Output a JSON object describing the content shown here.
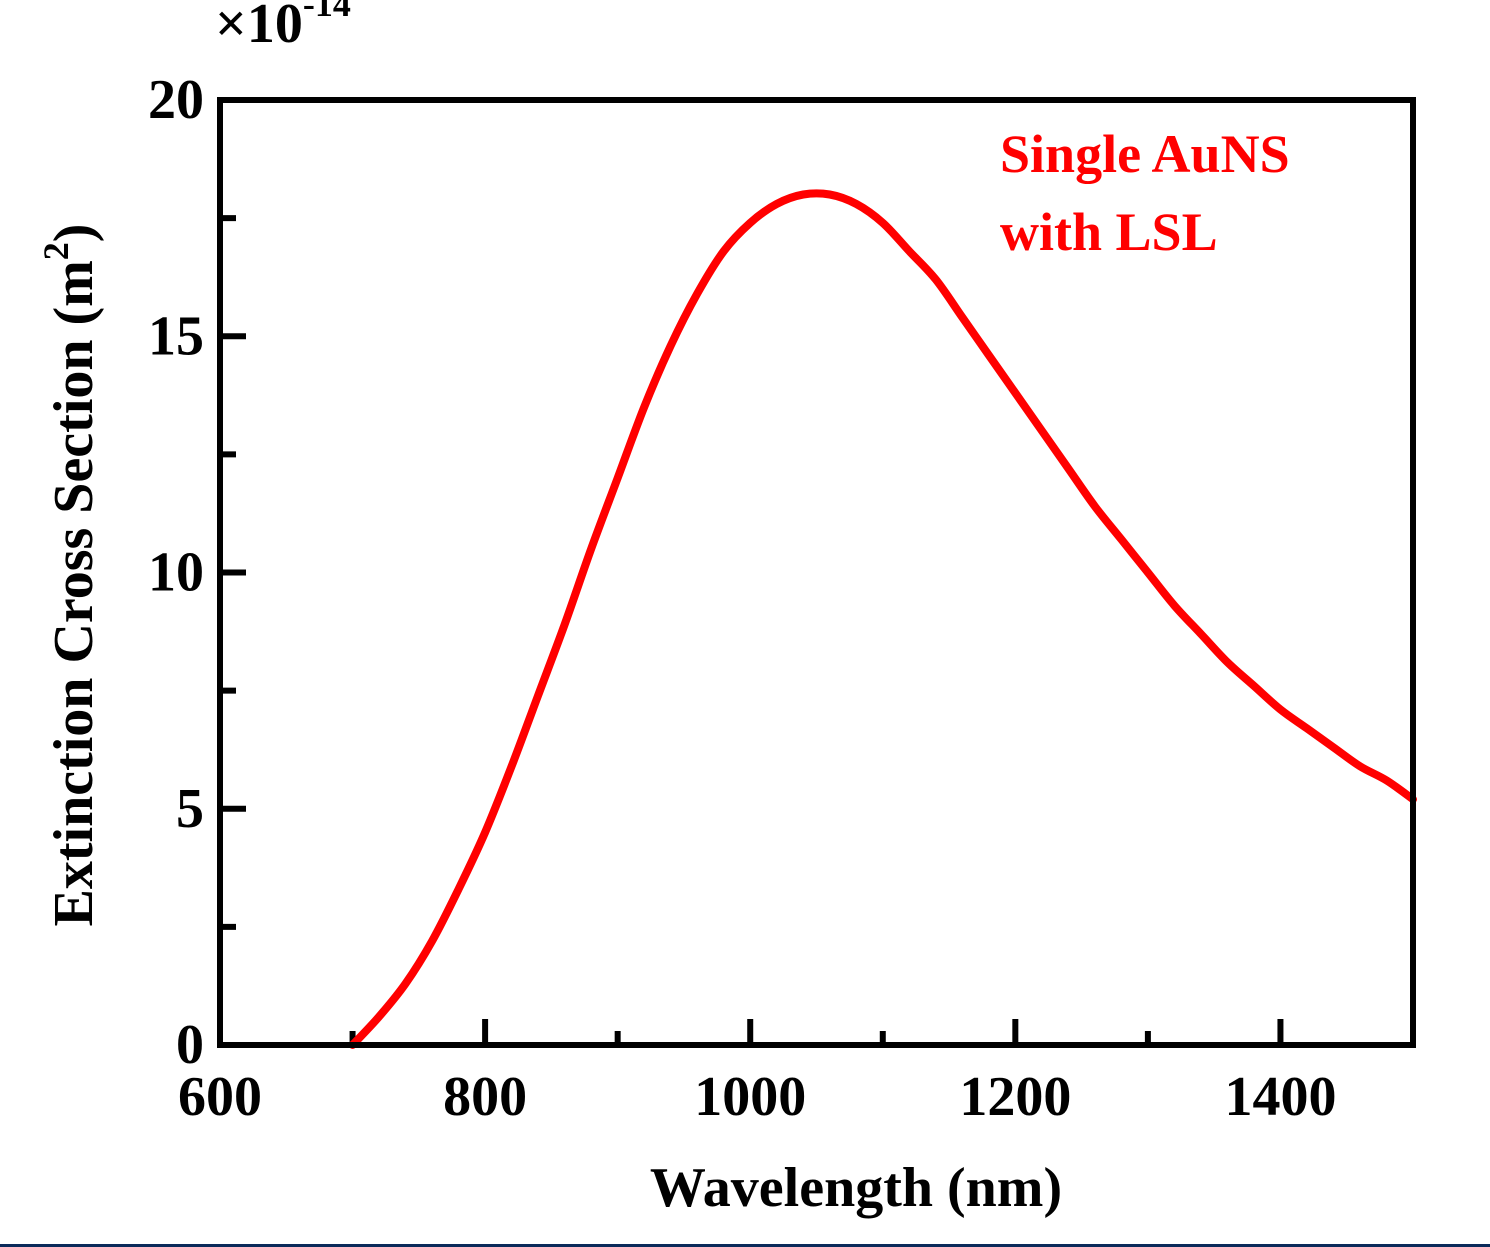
{
  "chart_data": {
    "type": "line",
    "title": "",
    "xlabel": "Wavelength (nm)",
    "ylabel": "Extinction Cross Section (m",
    "ylabel_superscript": "2",
    "ylabel_close": ")",
    "y_multiplier": "×10",
    "y_multiplier_exponent": "-14",
    "xlim": [
      600,
      1500
    ],
    "ylim": [
      0,
      20
    ],
    "xticks": [
      600,
      800,
      1000,
      1200,
      1400
    ],
    "yticks": [
      0,
      5,
      10,
      15,
      20
    ],
    "x_minor_ticks": [
      700,
      900,
      1100,
      1300
    ],
    "y_minor_ticks": [
      2.5,
      7.5,
      12.5,
      17.5
    ],
    "grid": false,
    "series": [
      {
        "name": "Single AuNS with LSL",
        "color": "#ff0000",
        "x": [
          700,
          720,
          740,
          760,
          780,
          800,
          820,
          840,
          860,
          880,
          900,
          920,
          940,
          960,
          980,
          1000,
          1020,
          1040,
          1060,
          1080,
          1100,
          1120,
          1140,
          1160,
          1180,
          1200,
          1220,
          1240,
          1260,
          1280,
          1300,
          1320,
          1340,
          1360,
          1380,
          1400,
          1420,
          1440,
          1460,
          1480,
          1500
        ],
        "y": [
          0.0,
          0.6,
          1.3,
          2.2,
          3.3,
          4.5,
          5.9,
          7.4,
          8.9,
          10.5,
          12.0,
          13.5,
          14.8,
          15.9,
          16.8,
          17.4,
          17.8,
          18.0,
          18.0,
          17.8,
          17.4,
          16.8,
          16.2,
          15.4,
          14.6,
          13.8,
          13.0,
          12.2,
          11.4,
          10.7,
          10.0,
          9.3,
          8.7,
          8.1,
          7.6,
          7.1,
          6.7,
          6.3,
          5.9,
          5.6,
          5.2
        ]
      }
    ],
    "annotation": [
      "Single AuNS",
      "with LSL"
    ],
    "legend_placement": "top-right"
  }
}
